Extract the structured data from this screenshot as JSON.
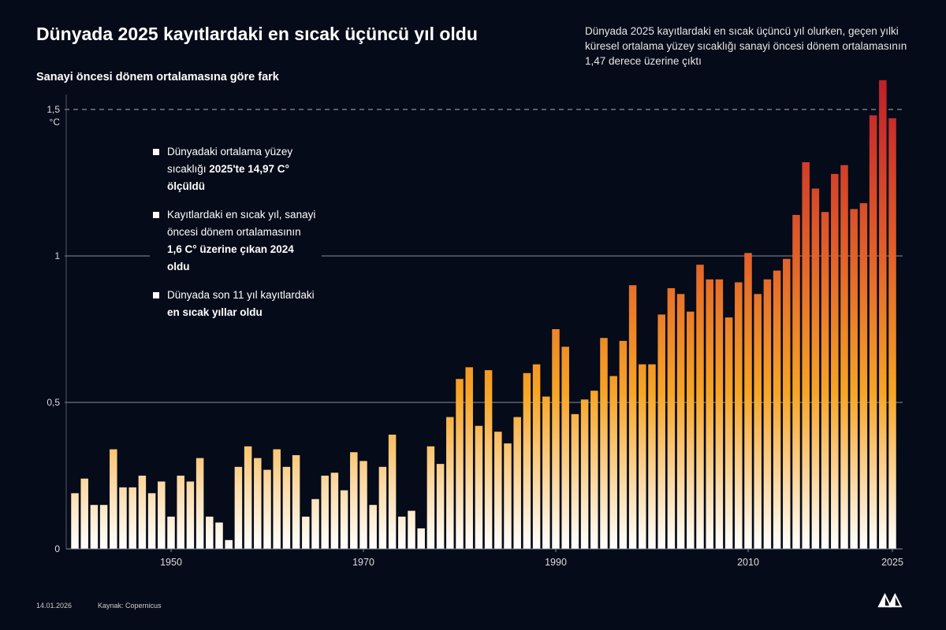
{
  "header": {
    "title": "Dünyada 2025 kayıtlardaki en sıcak üçüncü yıl oldu",
    "subtitle": "Sanayi öncesi dönem ortalamasına göre fark",
    "note": "Dünyada 2025 kayıtlardaki en sıcak üçüncü yıl olurken, geçen yılki küresel ortalama yüzey sıcaklığı sanayi öncesi dönem ortalamasının 1,47 derece üzerine çıktı"
  },
  "bullets": [
    {
      "text": "Dünyadaki ortalama yüzey sıcaklığı ",
      "bold": "2025'te 14,97 C° ölçüldü"
    },
    {
      "text": "Kayıtlardaki en sıcak yıl, sanayi öncesi dönem ortalamasının ",
      "bold": "1,6 C° üzerine çıkan 2024 oldu"
    },
    {
      "text": "Dünyada son 11 yıl kayıtlardaki ",
      "bold": "en sıcak yıllar oldu"
    }
  ],
  "footer": {
    "date": "14.01.2026",
    "source": "Kaynak: Copernicus",
    "logo": "AA"
  },
  "chart_data": {
    "type": "bar",
    "title": "Dünyada 2025 kayıtlardaki en sıcak üçüncü yıl oldu",
    "ylabel": "°C",
    "ylim": [
      0,
      1.65
    ],
    "xlim": [
      1940,
      2025
    ],
    "yticks": [
      {
        "v": 0,
        "label": "0"
      },
      {
        "v": 0.5,
        "label": "0,5"
      },
      {
        "v": 1,
        "label": "1"
      },
      {
        "v": 1.5,
        "label": "1,5"
      }
    ],
    "xticks": [
      1950,
      1970,
      1990,
      2010,
      2025
    ],
    "reference_line": {
      "value": 1.5,
      "style": "dashed"
    },
    "grid": "horizontal at 0.5 and 1",
    "colors": {
      "low": "#ffffff",
      "mid": "#f7a526",
      "high": "#e2622a",
      "top": "#c01e2b"
    },
    "x": [
      1940,
      1941,
      1942,
      1943,
      1944,
      1945,
      1946,
      1947,
      1948,
      1949,
      1950,
      1951,
      1952,
      1953,
      1954,
      1955,
      1956,
      1957,
      1958,
      1959,
      1960,
      1961,
      1962,
      1963,
      1964,
      1965,
      1966,
      1967,
      1968,
      1969,
      1970,
      1971,
      1972,
      1973,
      1974,
      1975,
      1976,
      1977,
      1978,
      1979,
      1980,
      1981,
      1982,
      1983,
      1984,
      1985,
      1986,
      1987,
      1988,
      1989,
      1990,
      1991,
      1992,
      1993,
      1994,
      1995,
      1996,
      1997,
      1998,
      1999,
      2000,
      2001,
      2002,
      2003,
      2004,
      2005,
      2006,
      2007,
      2008,
      2009,
      2010,
      2011,
      2012,
      2013,
      2014,
      2015,
      2016,
      2017,
      2018,
      2019,
      2020,
      2021,
      2022,
      2023,
      2024,
      2025
    ],
    "values": [
      0.19,
      0.24,
      0.15,
      0.15,
      0.34,
      0.21,
      0.21,
      0.25,
      0.19,
      0.23,
      0.11,
      0.25,
      0.23,
      0.31,
      0.11,
      0.09,
      0.03,
      0.28,
      0.35,
      0.31,
      0.27,
      0.34,
      0.28,
      0.32,
      0.11,
      0.17,
      0.25,
      0.26,
      0.2,
      0.33,
      0.3,
      0.15,
      0.28,
      0.39,
      0.11,
      0.13,
      0.07,
      0.35,
      0.29,
      0.45,
      0.58,
      0.62,
      0.42,
      0.61,
      0.4,
      0.36,
      0.45,
      0.6,
      0.63,
      0.52,
      0.75,
      0.69,
      0.46,
      0.51,
      0.54,
      0.72,
      0.59,
      0.71,
      0.9,
      0.63,
      0.63,
      0.8,
      0.89,
      0.87,
      0.81,
      0.97,
      0.92,
      0.92,
      0.79,
      0.91,
      1.01,
      0.87,
      0.92,
      0.95,
      0.99,
      1.14,
      1.32,
      1.23,
      1.15,
      1.28,
      1.31,
      1.16,
      1.18,
      1.48,
      1.6,
      1.47
    ]
  }
}
